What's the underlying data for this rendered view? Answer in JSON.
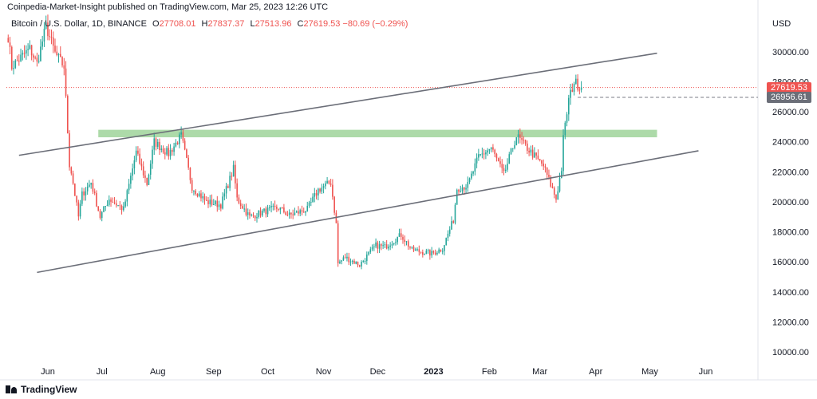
{
  "header": {
    "published": "Coinpedia-Market-Insight published on TradingView.com, Mar 25, 2023 12:26 UTC",
    "symbol": "Bitcoin / U.S. Dollar, 1D, BINANCE",
    "ohlc": [
      {
        "key": "O",
        "value": "27708.01"
      },
      {
        "key": "H",
        "value": "27837.37"
      },
      {
        "key": "L",
        "value": "27513.96"
      },
      {
        "key": "C",
        "value": "27619.53"
      }
    ],
    "change": "−80.69 (−0.29%)"
  },
  "colors": {
    "up": "#26a69a",
    "down": "#ef5350",
    "zone": "#9fd49a",
    "channel": "#6b6e78",
    "last_price_label": "#ef5350",
    "level_label": "#6b6e78"
  },
  "price_labels": {
    "currency": "USD",
    "last": "27619.53",
    "level": "26956.61"
  },
  "footer": {
    "brand": "TradingView"
  },
  "chart_data": {
    "type": "candlestick",
    "instrument": "BTCUSD",
    "x_ticks": [
      "Jun",
      "Jul",
      "Aug",
      "Sep",
      "Oct",
      "Nov",
      "Dec",
      "2023",
      "Feb",
      "Mar",
      "Apr",
      "May",
      "Jun"
    ],
    "x_tick_dates": [
      "2022-06-01",
      "2022-07-01",
      "2022-08-01",
      "2022-09-01",
      "2022-10-01",
      "2022-11-01",
      "2022-12-01",
      "2023-01-01",
      "2023-02-01",
      "2023-03-01",
      "2023-04-01",
      "2023-05-01",
      "2023-06-01"
    ],
    "y_ticks": [
      10000,
      12000,
      14000,
      16000,
      18000,
      20000,
      22000,
      24000,
      26000,
      28000,
      30000
    ],
    "y_tick_labels": [
      "10000.00",
      "12000.00",
      "14000.00",
      "16000.00",
      "18000.00",
      "20000.00",
      "22000.00",
      "24000.00",
      "26000.00",
      "28000.00",
      "30000.00"
    ],
    "ylim": [
      9100,
      32700
    ],
    "xlim": [
      "2022-05-09",
      "2023-06-30"
    ],
    "last_close": 27619.53,
    "horizontal_level": 26956.61,
    "resistance_zone": {
      "from": "2022-06-29",
      "to": "2023-05-05",
      "low": 24300,
      "high": 24800
    },
    "channel_lines": [
      {
        "name": "upper",
        "start": [
          "2022-05-16",
          23100
        ],
        "end": [
          "2023-05-05",
          29900
        ]
      },
      {
        "name": "lower",
        "start": [
          "2022-05-26",
          15300
        ],
        "end": [
          "2023-05-28",
          23400
        ]
      }
    ],
    "price_waypoints": [
      [
        "2022-05-10",
        31000
      ],
      [
        "2022-05-12",
        29000
      ],
      [
        "2022-05-16",
        29500
      ],
      [
        "2022-05-22",
        30200
      ],
      [
        "2022-05-26",
        29200
      ],
      [
        "2022-05-31",
        31700
      ],
      [
        "2022-06-05",
        29900
      ],
      [
        "2022-06-10",
        29000
      ],
      [
        "2022-06-13",
        22500
      ],
      [
        "2022-06-14",
        22000
      ],
      [
        "2022-06-18",
        19000
      ],
      [
        "2022-06-20",
        20500
      ],
      [
        "2022-06-25",
        21300
      ],
      [
        "2022-06-30",
        19000
      ],
      [
        "2022-07-05",
        20200
      ],
      [
        "2022-07-13",
        19500
      ],
      [
        "2022-07-20",
        23300
      ],
      [
        "2022-07-26",
        21200
      ],
      [
        "2022-07-30",
        24000
      ],
      [
        "2022-08-07",
        23200
      ],
      [
        "2022-08-14",
        24400
      ],
      [
        "2022-08-20",
        21000
      ],
      [
        "2022-08-28",
        20000
      ],
      [
        "2022-09-05",
        19800
      ],
      [
        "2022-09-12",
        22200
      ],
      [
        "2022-09-14",
        20200
      ],
      [
        "2022-09-21",
        19000
      ],
      [
        "2022-09-30",
        19400
      ],
      [
        "2022-10-07",
        19600
      ],
      [
        "2022-10-13",
        19100
      ],
      [
        "2022-10-23",
        19500
      ],
      [
        "2022-10-29",
        20800
      ],
      [
        "2022-11-05",
        21300
      ],
      [
        "2022-11-08",
        18500
      ],
      [
        "2022-11-09",
        15900
      ],
      [
        "2022-11-13",
        16300
      ],
      [
        "2022-11-21",
        15800
      ],
      [
        "2022-11-30",
        17100
      ],
      [
        "2022-12-05",
        17000
      ],
      [
        "2022-12-14",
        17800
      ],
      [
        "2022-12-20",
        16800
      ],
      [
        "2022-12-31",
        16550
      ],
      [
        "2023-01-06",
        16900
      ],
      [
        "2023-01-12",
        18800
      ],
      [
        "2023-01-14",
        20900
      ],
      [
        "2023-01-20",
        21100
      ],
      [
        "2023-01-26",
        23000
      ],
      [
        "2023-02-02",
        23600
      ],
      [
        "2023-02-09",
        21800
      ],
      [
        "2023-02-16",
        24400
      ],
      [
        "2023-02-24",
        23300
      ],
      [
        "2023-03-03",
        22400
      ],
      [
        "2023-03-10",
        20200
      ],
      [
        "2023-03-13",
        22200
      ],
      [
        "2023-03-14",
        24200
      ],
      [
        "2023-03-17",
        26800
      ],
      [
        "2023-03-20",
        28000
      ],
      [
        "2023-03-24",
        27619.53
      ]
    ]
  }
}
